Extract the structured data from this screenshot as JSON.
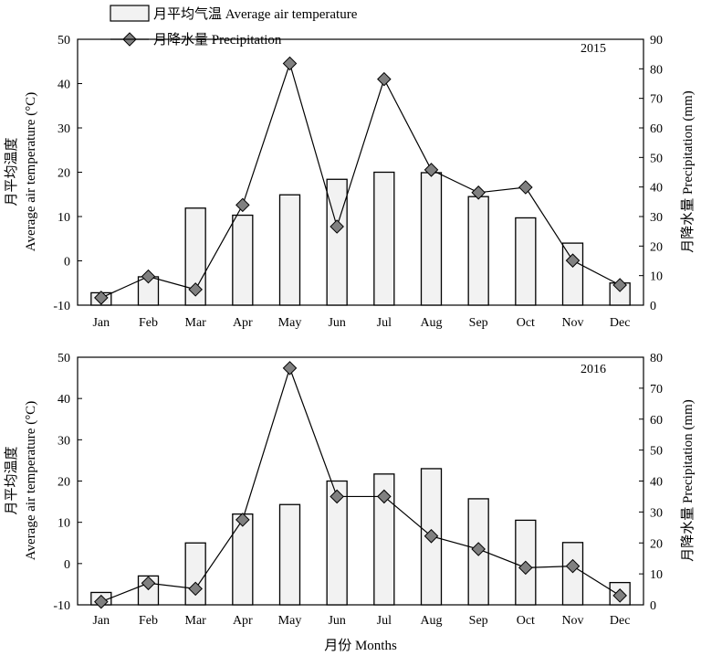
{
  "legend": {
    "temperature_label": "月平均气温 Average air temperature",
    "precipitation_label": "月降水量 Precipitation"
  },
  "x_axis_title": "月份 Months",
  "colors": {
    "bar_fill": "#f2f2f2",
    "bar_stroke": "#000000",
    "marker_fill": "#808080",
    "line": "#000000"
  },
  "chart_data": [
    {
      "type": "bar",
      "year_label": "2015",
      "categories": [
        "Jan",
        "Feb",
        "Mar",
        "Apr",
        "May",
        "Jun",
        "Jul",
        "Aug",
        "Sep",
        "Oct",
        "Nov",
        "Dec"
      ],
      "ylabel_left_cn": "月平均温度",
      "ylabel_left_en": "Average air temperature (°C)",
      "ylabel_right": "月降水量 Precipitation (mm)",
      "left_ticks": [
        "50",
        "40",
        "30",
        "20",
        "10",
        "0",
        "-10"
      ],
      "right_ticks": [
        "90",
        "80",
        "70",
        "60",
        "50",
        "40",
        "30",
        "20",
        "10",
        "0"
      ],
      "ylim_left": [
        -10,
        50
      ],
      "ylim_right": [
        0,
        90
      ],
      "series": [
        {
          "name": "月平均气温 Average air temperature",
          "type": "bar",
          "axis": "left",
          "values": [
            -7.2,
            -3.6,
            11.9,
            10.3,
            14.9,
            18.4,
            20.0,
            19.9,
            14.5,
            9.7,
            4.0,
            -5.0
          ]
        },
        {
          "name": "月降水量 Precipitation",
          "type": "line",
          "axis": "right",
          "values": [
            2.5,
            9.7,
            5.3,
            33.9,
            81.8,
            26.6,
            76.5,
            45.8,
            38.1,
            39.9,
            15.1,
            6.8
          ]
        }
      ]
    },
    {
      "type": "bar",
      "year_label": "2016",
      "categories": [
        "Jan",
        "Feb",
        "Mar",
        "Apr",
        "May",
        "Jun",
        "Jul",
        "Aug",
        "Sep",
        "Oct",
        "Nov",
        "Dec"
      ],
      "ylabel_left_cn": "月平均温度",
      "ylabel_left_en": "Average air temperature (°C)",
      "ylabel_right": "月降水量 Precipitation (mm)",
      "left_ticks": [
        "50",
        "40",
        "30",
        "20",
        "10",
        "0",
        "-10"
      ],
      "right_ticks": [
        "80",
        "70",
        "60",
        "50",
        "40",
        "30",
        "20",
        "10",
        "0"
      ],
      "ylim_left": [
        -10,
        50
      ],
      "ylim_right": [
        0,
        80
      ],
      "series": [
        {
          "name": "月平均气温 Average air temperature",
          "type": "bar",
          "axis": "left",
          "values": [
            -7.0,
            -3.0,
            5.0,
            12.0,
            14.3,
            20.0,
            21.7,
            23.0,
            15.7,
            10.5,
            5.1,
            -4.6
          ]
        },
        {
          "name": "月降水量 Precipitation",
          "type": "line",
          "axis": "right",
          "values": [
            1.0,
            7.0,
            5.2,
            27.5,
            76.5,
            35.0,
            35.0,
            22.2,
            18.0,
            12.0,
            12.5,
            3.0
          ]
        }
      ]
    }
  ]
}
